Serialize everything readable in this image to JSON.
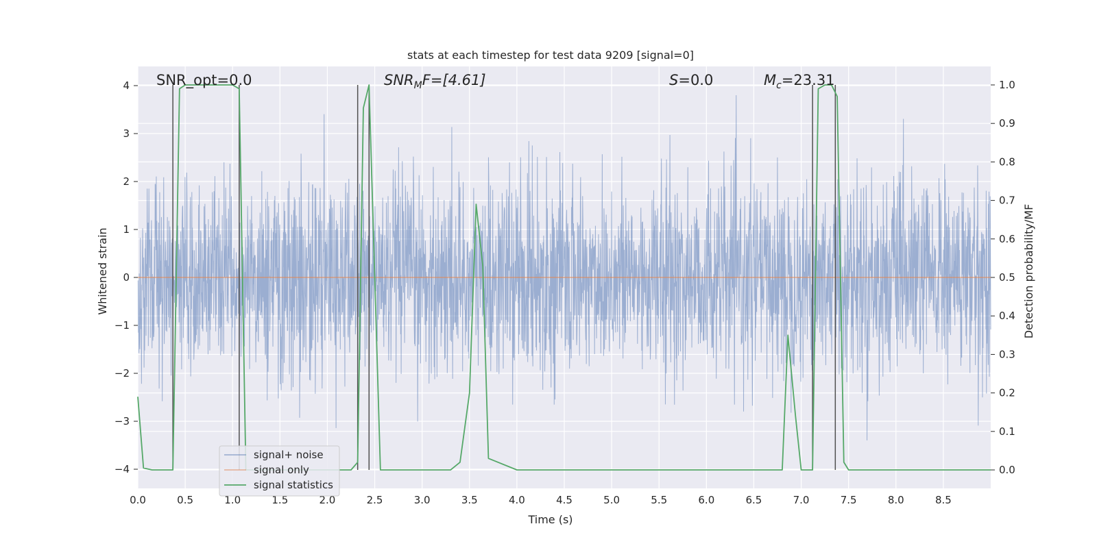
{
  "chart_data": {
    "type": "line",
    "title": "stats at each timestep for test data 9209 [signal=0]",
    "xlabel": "Time (s)",
    "ylabel": "Whitened strain",
    "ylabel_right": "Detection probability/MF",
    "xlim": [
      0.0,
      9.0
    ],
    "ylim": [
      -4.4,
      4.4
    ],
    "ylim_right": [
      -0.048,
      1.048
    ],
    "xticks": [
      0.0,
      0.5,
      1.0,
      1.5,
      2.0,
      2.5,
      3.0,
      3.5,
      4.0,
      4.5,
      5.0,
      5.5,
      6.0,
      6.5,
      7.0,
      7.5,
      8.0,
      8.5
    ],
    "xtick_labels": [
      "0.0",
      "0.5",
      "1.0",
      "1.5",
      "2.0",
      "2.5",
      "3.0",
      "3.5",
      "4.0",
      "4.5",
      "5.0",
      "5.5",
      "6.0",
      "6.5",
      "7.0",
      "7.5",
      "8.0",
      "8.5"
    ],
    "yticks": [
      -4,
      -3,
      -2,
      -1,
      0,
      1,
      2,
      3,
      4
    ],
    "ytick_labels": [
      "−4",
      "−3",
      "−2",
      "−1",
      "0",
      "1",
      "2",
      "3",
      "4"
    ],
    "yticks_right": [
      0.0,
      0.1,
      0.2,
      0.3,
      0.4,
      0.5,
      0.6,
      0.7,
      0.8,
      0.9,
      1.0
    ],
    "ytick_labels_right": [
      "0.0",
      "0.1",
      "0.2",
      "0.3",
      "0.4",
      "0.5",
      "0.6",
      "0.7",
      "0.8",
      "0.9",
      "1.0"
    ],
    "grid": true,
    "legend_position": "lower-left",
    "annotations": {
      "snr_opt": "SNR_opt=0.0",
      "snr_mf_main": "SNR",
      "snr_mf_sub": "M",
      "snr_mf_rest": "F=[4.61]",
      "s_main": "S",
      "s_rest": "=0.0",
      "mc_main": "M",
      "mc_sub": "c",
      "mc_rest": "=23.31"
    },
    "series": [
      {
        "name": "signal+ noise",
        "color": "#4c72b0",
        "description_values": "dense Gaussian noise, sample range approx",
        "min": -4.0,
        "max": 3.8,
        "std": 1.0
      },
      {
        "name": "signal only",
        "color": "#dd8452",
        "x": [
          0.0,
          9.0
        ],
        "y": [
          0.0,
          0.0
        ]
      },
      {
        "name": "signal statistics",
        "color": "#55a868",
        "axis": "right",
        "x": [
          0.0,
          0.06,
          0.15,
          0.25,
          0.37,
          0.44,
          0.5,
          0.6,
          0.7,
          0.8,
          0.9,
          1.0,
          1.07,
          1.14,
          1.25,
          1.5,
          2.0,
          2.25,
          2.32,
          2.38,
          2.44,
          2.56,
          2.8,
          3.0,
          3.2,
          3.3,
          3.4,
          3.5,
          3.57,
          3.64,
          3.7,
          4.0,
          5.0,
          6.0,
          6.5,
          6.8,
          6.86,
          6.94,
          7.0,
          7.12,
          7.18,
          7.25,
          7.32,
          7.38,
          7.45,
          7.5,
          8.0,
          8.5,
          9.0
        ],
        "y": [
          0.19,
          0.005,
          0.0,
          0.0,
          0.0,
          0.99,
          1.0,
          1.0,
          1.0,
          1.0,
          1.0,
          1.0,
          0.99,
          0.0,
          0.0,
          0.0,
          0.0,
          0.0,
          0.02,
          0.94,
          1.0,
          0.0,
          0.0,
          0.0,
          0.0,
          0.0,
          0.02,
          0.2,
          0.69,
          0.53,
          0.03,
          0.0,
          0.0,
          0.0,
          0.0,
          0.0,
          0.35,
          0.14,
          0.0,
          0.0,
          0.99,
          1.0,
          1.0,
          0.97,
          0.02,
          0.0,
          0.0,
          0.0,
          0.0
        ]
      },
      {
        "name": "",
        "color": "#505050",
        "type": "vlines",
        "x": [
          0.37,
          1.07,
          2.32,
          2.44,
          7.12,
          7.36
        ],
        "ymin": 0.0,
        "ymax": 1.0
      }
    ]
  },
  "legend": {
    "items": [
      {
        "label": "signal+ noise",
        "color": "#4c72b0"
      },
      {
        "label": "signal only",
        "color": "#dd8452"
      },
      {
        "label": "signal statistics",
        "color": "#55a868"
      }
    ]
  },
  "colors": {
    "plot_background": "#eaeaf2",
    "grid": "#ffffff",
    "noise": "#4c72b0",
    "signal": "#dd8452",
    "statistics": "#55a868",
    "vlines": "#505050"
  }
}
